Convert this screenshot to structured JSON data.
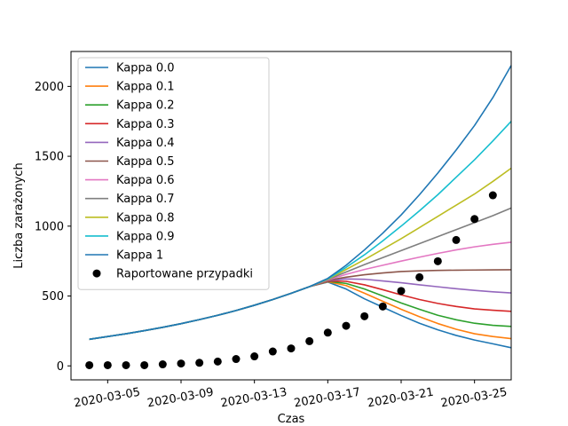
{
  "chart_data": {
    "type": "line",
    "xlabel": "Czas",
    "ylabel": "Liczba zarażonych",
    "x_start": "2020-03-04",
    "x_dates": [
      "2020-03-04",
      "2020-03-05",
      "2020-03-06",
      "2020-03-07",
      "2020-03-08",
      "2020-03-09",
      "2020-03-10",
      "2020-03-11",
      "2020-03-12",
      "2020-03-13",
      "2020-03-14",
      "2020-03-15",
      "2020-03-16",
      "2020-03-17",
      "2020-03-18",
      "2020-03-19",
      "2020-03-20",
      "2020-03-21",
      "2020-03-22",
      "2020-03-23",
      "2020-03-24",
      "2020-03-25",
      "2020-03-26"
    ],
    "xlim": [
      "2020-03-03",
      "2020-03-27"
    ],
    "ylim": [
      -100,
      2250
    ],
    "x_ticks": [
      "2020-03-05",
      "2020-03-09",
      "2020-03-13",
      "2020-03-17",
      "2020-03-21",
      "2020-03-25"
    ],
    "y_ticks": [
      0,
      500,
      1000,
      1500,
      2000
    ],
    "legend_position": "upper-left",
    "common_start": [
      190,
      210,
      230,
      252,
      276,
      302,
      331,
      362,
      396,
      434,
      475,
      519,
      567
    ],
    "series": [
      {
        "name": "Kappa 0.0",
        "color": "#1f77b4",
        "after": [
          567,
          600,
          550,
          480,
          420,
          360,
          305,
          258,
          218,
          185,
          158,
          130
        ]
      },
      {
        "name": "Kappa 0.1",
        "color": "#ff7f0e",
        "after": [
          567,
          603,
          575,
          520,
          462,
          405,
          352,
          303,
          262,
          230,
          210,
          195
        ]
      },
      {
        "name": "Kappa 0.2",
        "color": "#2ca02c",
        "after": [
          567,
          605,
          590,
          550,
          500,
          450,
          405,
          362,
          330,
          305,
          290,
          282
        ]
      },
      {
        "name": "Kappa 0.3",
        "color": "#d62728",
        "after": [
          567,
          607,
          605,
          580,
          545,
          508,
          475,
          447,
          425,
          408,
          398,
          390
        ]
      },
      {
        "name": "Kappa 0.4",
        "color": "#9467bd",
        "after": [
          567,
          610,
          622,
          620,
          608,
          595,
          580,
          566,
          552,
          540,
          530,
          522
        ]
      },
      {
        "name": "Kappa 0.5",
        "color": "#8c564b",
        "after": [
          567,
          612,
          635,
          652,
          665,
          675,
          680,
          683,
          685,
          686,
          687,
          688
        ]
      },
      {
        "name": "Kappa 0.6",
        "color": "#e377c2",
        "after": [
          567,
          615,
          655,
          690,
          720,
          750,
          778,
          805,
          830,
          852,
          870,
          885
        ]
      },
      {
        "name": "Kappa 0.7",
        "color": "#7f7f7f",
        "after": [
          567,
          618,
          672,
          725,
          775,
          825,
          875,
          925,
          975,
          1025,
          1075,
          1130
        ]
      },
      {
        "name": "Kappa 0.8",
        "color": "#bcbd22",
        "after": [
          567,
          620,
          690,
          760,
          835,
          910,
          990,
          1070,
          1150,
          1230,
          1320,
          1415
        ]
      },
      {
        "name": "Kappa 0.9",
        "color": "#17becf",
        "after": [
          567,
          623,
          705,
          795,
          895,
          1000,
          1110,
          1225,
          1350,
          1475,
          1610,
          1750
        ]
      },
      {
        "name": "Kappa 1",
        "color": "#1f77b4",
        "after": [
          567,
          626,
          720,
          830,
          950,
          1080,
          1225,
          1380,
          1545,
          1720,
          1920,
          2150
        ]
      }
    ],
    "scatter": {
      "name": "Raportowane przypadki",
      "color": "#000000",
      "values": [
        5,
        5,
        5,
        5,
        11,
        17,
        22,
        31,
        49,
        68,
        103,
        125,
        177,
        238,
        287,
        355,
        425,
        536,
        634,
        749,
        901,
        1051,
        1221
      ]
    }
  }
}
